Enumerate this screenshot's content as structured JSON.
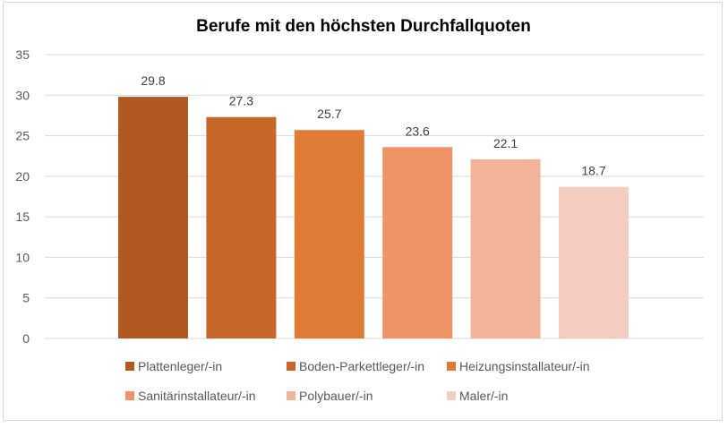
{
  "chart_data": {
    "type": "bar",
    "title": "Berufe mit den höchsten Durchfallquoten",
    "xlabel": "",
    "ylabel": "",
    "ylim": [
      0,
      35
    ],
    "yticks": [
      0,
      5,
      10,
      15,
      20,
      25,
      30,
      35
    ],
    "grid": true,
    "legend_position": "bottom",
    "categories": [
      "Plattenleger/-in",
      "Boden-Parkettleger/-in",
      "Heizungsinstallateur/-in",
      "Sanitärinstallateur/-in",
      "Polybauer/-in",
      "Maler/-in"
    ],
    "values": [
      29.8,
      27.3,
      25.7,
      23.6,
      22.1,
      18.7
    ],
    "colors": [
      "#b05a22",
      "#c8672a",
      "#e07b35",
      "#ef9466",
      "#f2b39a",
      "#f5cdc0"
    ]
  }
}
